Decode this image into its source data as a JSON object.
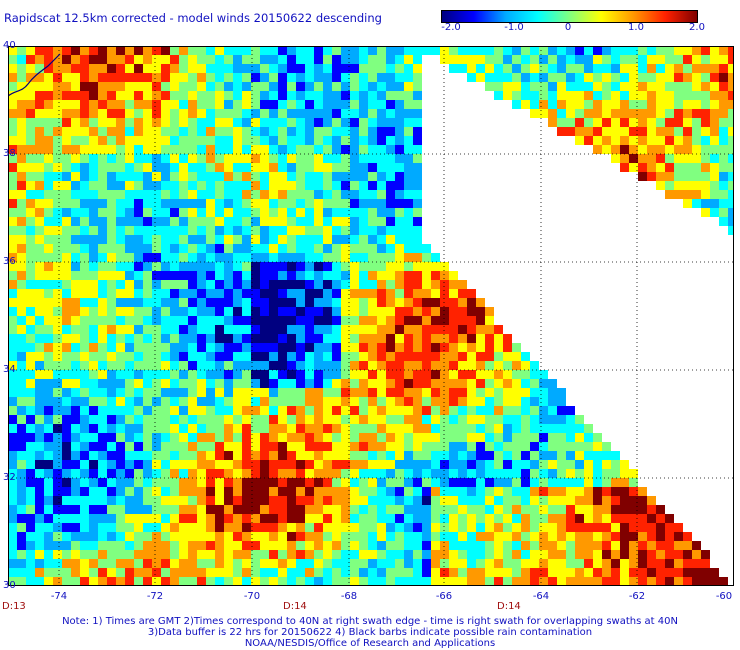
{
  "title": "Rapidscat 12.5km corrected - model winds 20150622 descending",
  "colorbar": {
    "labels": [
      "-2.0",
      "-1.0",
      "0",
      "1.0",
      "2.0"
    ],
    "min": -2.0,
    "max": 2.0
  },
  "map": {
    "lon_range": [
      -75,
      -60
    ],
    "lat_range": [
      30,
      40
    ],
    "lat_labels": [
      "40",
      "38",
      "36",
      "34",
      "32",
      "30"
    ],
    "lon_labels": [
      "-74",
      "-72",
      "-70",
      "-68",
      "-66",
      "-64",
      "-62",
      "-60"
    ],
    "grid": true
  },
  "time_labels": [
    "D:13",
    "D:14",
    "D:14"
  ],
  "notes": [
    "Note: 1) Times are GMT 2)Times correspond to 40N at right swath edge - time is right swath for overlapping swaths at 40N",
    "3)Data buffer is 22 hrs for 20150622 4) Black barbs indicate possible rain contamination",
    "NOAA/NESDIS/Office of Research and Applications"
  ]
}
